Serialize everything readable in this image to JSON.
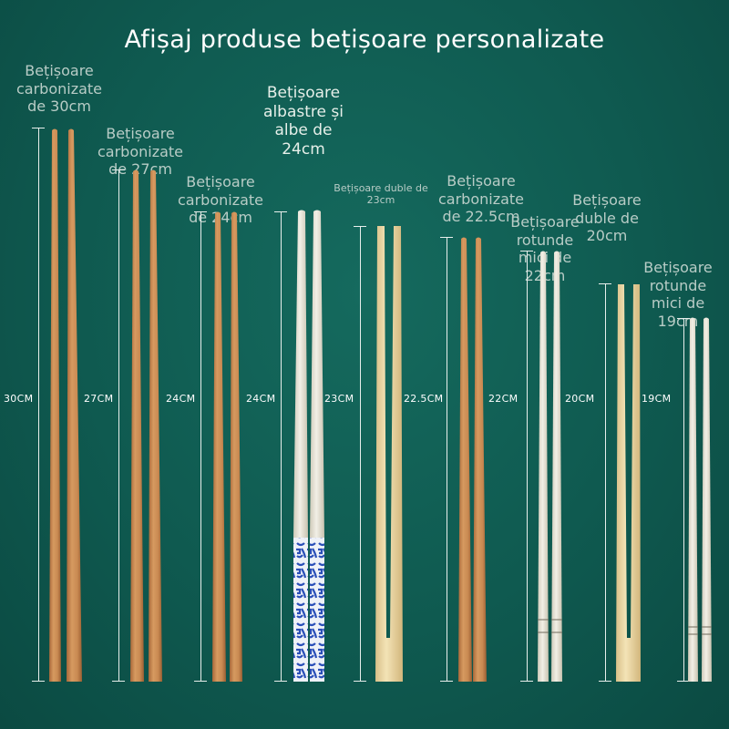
{
  "title": "Afișaj produse bețișoare personalizate",
  "products": [
    {
      "name": "Bețișoare carbonizate de 30cm",
      "length": "30CM",
      "type": "carbonized"
    },
    {
      "name": "Bețișoare carbonizate de 27cm",
      "length": "27CM",
      "type": "carbonized"
    },
    {
      "name": "Bețișoare carbonizate de 24cm",
      "length": "24CM",
      "type": "carbonized"
    },
    {
      "name": "Bețișoare albastre și albe de 24cm",
      "length": "24CM",
      "type": "blue-white"
    },
    {
      "name": "Bețișoare duble de 23cm",
      "length": "23CM",
      "type": "double"
    },
    {
      "name": "Bețișoare carbonizate de 22.5cm",
      "length": "22.5CM",
      "type": "carbonized"
    },
    {
      "name": "Bețișoare rotunde mici de 22cm",
      "length": "22CM",
      "type": "round"
    },
    {
      "name": "Bețișoare duble de 20cm",
      "length": "20CM",
      "type": "double"
    },
    {
      "name": "Bețișoare rotunde mici de 19cm",
      "length": "19CM",
      "type": "round"
    }
  ],
  "colors": {
    "background": "#0f5a50",
    "carbonized": "#c98a52",
    "bamboo": "#ecd9a8",
    "round": "#ece8dc",
    "porcelain_blue": "#2a4fb8"
  }
}
